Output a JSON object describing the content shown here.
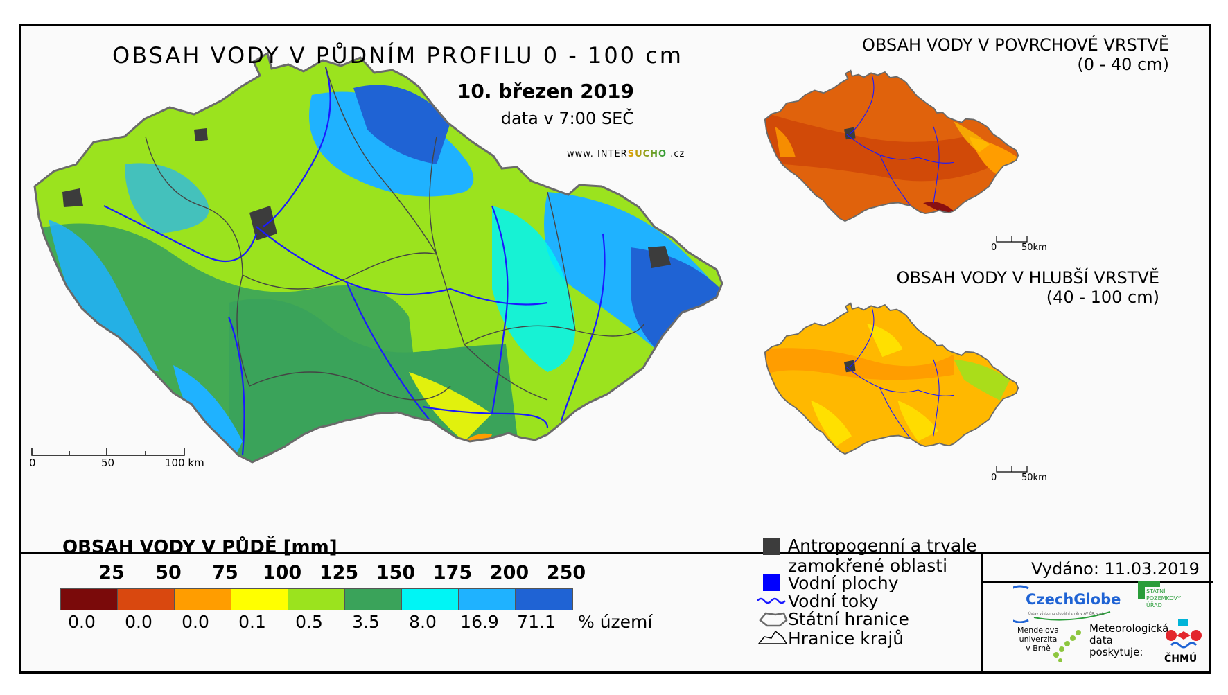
{
  "main_map": {
    "title": "OBSAH VODY V PŮDNÍM PROFILU 0 - 100 cm",
    "date": "10. březen 2019",
    "time": "data v 7:00 SEČ",
    "website_prefix": "www. INTER",
    "website_accent": "SUCHO",
    "website_suffix": " .cz",
    "scale": {
      "label_0": "0",
      "label_50": "50",
      "label_100": "100 km"
    }
  },
  "surface_map": {
    "title_line1": "OBSAH VODY V POVRCHOVÉ VRSTVĚ",
    "title_line2": "(0 - 40 cm)",
    "scale": {
      "label_0": "0",
      "label_50": "50km"
    }
  },
  "deep_map": {
    "title_line1": "OBSAH VODY V HLUBŠÍ VRSTVĚ",
    "title_line2": "(40 - 100 cm)",
    "scale": {
      "label_0": "0",
      "label_50": "50km"
    }
  },
  "legend": {
    "title": "OBSAH VODY V PŮDĚ [mm]",
    "class_labels": [
      "25",
      "50",
      "75",
      "100",
      "125",
      "150",
      "175",
      "200",
      "250"
    ],
    "percentages": [
      "0.0",
      "0.0",
      "0.0",
      "0.1",
      "0.5",
      "3.5",
      "8.0",
      "16.9",
      "71.1"
    ],
    "percent_unit": "% území",
    "colors": [
      "#7a0a0a",
      "#d9480f",
      "#ff9d00",
      "#ffff00",
      "#9be31e",
      "#3aa35a",
      "#00f5f5",
      "#1fb2ff",
      "#1f63d4"
    ]
  },
  "key": {
    "anthropogenic_line1": "Antropogenní a trvale",
    "anthropogenic_line2": "zamokřené oblasti",
    "water_bodies": "Vodní plochy",
    "rivers": "Vodní toky",
    "state_border": "Státní hranice",
    "region_border": "Hranice krajů",
    "colors": {
      "anthropogenic": "#3c3c3c",
      "water": "#0000ff",
      "river": "#1a1aff"
    }
  },
  "footer": {
    "issued": "Vydáno: 11.03.2019",
    "czechglobe": "CzechGlobe",
    "czechglobe_sub": "Ústav výzkumu globální změny AV ČR, v.v.i.",
    "spu_line1": "STÁTNÍ",
    "spu_line2": "POZEMKOVÝ",
    "spu_line3": "ÚŘAD",
    "mendel_line1": "Mendelova",
    "mendel_line2": "univerzita",
    "mendel_line3": "v Brně",
    "meteo_line1": "Meteorologická",
    "meteo_line2": "data",
    "meteo_line3": "poskytuje:",
    "chmu": "ČHMÚ"
  }
}
